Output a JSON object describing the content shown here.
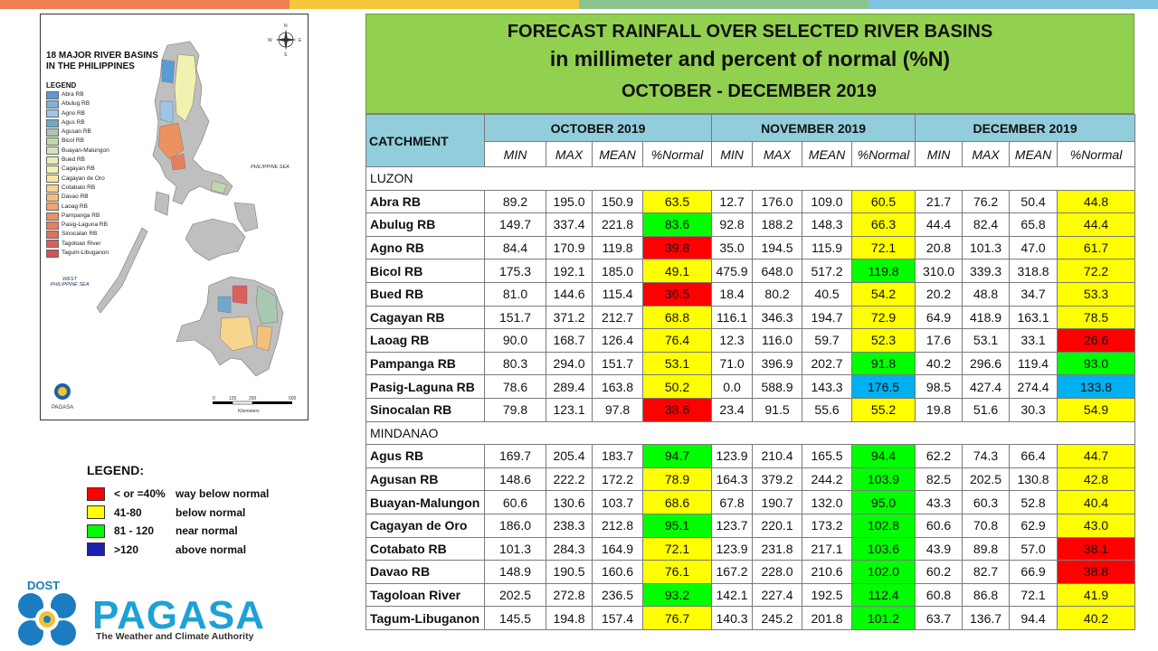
{
  "top_strip_colors": [
    "#f07f4f",
    "#f5c83c",
    "#8bc58b",
    "#7ec3e0"
  ],
  "map": {
    "title_line1": "18 MAJOR RIVER BASINS",
    "title_line2": "IN THE PHILIPPINES",
    "legend_title": "LEGEND",
    "legend": [
      {
        "label": "Abra RB",
        "color": "#5b9bd5"
      },
      {
        "label": "Abulug RB",
        "color": "#7fb2dd"
      },
      {
        "label": "Agno RB",
        "color": "#9ec5e8"
      },
      {
        "label": "Agus RB",
        "color": "#6fa8c9"
      },
      {
        "label": "Agusan RB",
        "color": "#a9c8b0"
      },
      {
        "label": "Bicol RB",
        "color": "#c0d7a8"
      },
      {
        "label": "Buayan-Malungon",
        "color": "#d4e6b5"
      },
      {
        "label": "Bued RB",
        "color": "#e4efb4"
      },
      {
        "label": "Cagayan RB",
        "color": "#f2f2b0"
      },
      {
        "label": "Cagayan de Oro",
        "color": "#f7e9a0"
      },
      {
        "label": "Cotabato RB",
        "color": "#f6d58c"
      },
      {
        "label": "Davao RB",
        "color": "#f4bf7a"
      },
      {
        "label": "Laoag RB",
        "color": "#f1a66c"
      },
      {
        "label": "Pampanga RB",
        "color": "#ec9160"
      },
      {
        "label": "Pasig-Laguna RB",
        "color": "#e87f5c"
      },
      {
        "label": "Sinocalan RB",
        "color": "#e26f5c"
      },
      {
        "label": "Tagoloan River",
        "color": "#db5f5a"
      },
      {
        "label": "Tagum-Libuganon",
        "color": "#d65058"
      }
    ],
    "philippine_sea_label": "PHILIPPINE SEA",
    "west_sea_label": "WEST PHILIPPINE SEA",
    "compass_letters": [
      "N",
      "E",
      "S",
      "W"
    ],
    "scale_ticks": [
      "0",
      "125",
      "250",
      "500"
    ],
    "scale_unit": "Kilometers",
    "footer": "PAGASA"
  },
  "header": {
    "line1": "FORECAST RAINFALL OVER SELECTED RIVER BASINS",
    "line2": "in millimeter  and percent of normal (%N)",
    "line3": "OCTOBER -  DECEMBER 2019"
  },
  "table": {
    "catchment_label": "CATCHMENT",
    "months": [
      "OCTOBER 2019",
      "NOVEMBER 2019",
      "DECEMBER 2019"
    ],
    "subheaders": [
      "MIN",
      "MAX",
      "MEAN",
      "%Normal"
    ],
    "regions": [
      {
        "name": "LUZON",
        "rows": [
          {
            "name": "Abra RB",
            "v": [
              "89.2",
              "195.0",
              "150.9",
              "63.5",
              "12.7",
              "176.0",
              "109.0",
              "60.5",
              "21.7",
              "76.2",
              "50.4",
              "44.8"
            ],
            "c": [
              "yellow",
              "yellow",
              "yellow"
            ]
          },
          {
            "name": "Abulug RB",
            "v": [
              "149.7",
              "337.4",
              "221.8",
              "83.6",
              "92.8",
              "188.2",
              "148.3",
              "66.3",
              "44.4",
              "82.4",
              "65.8",
              "44.4"
            ],
            "c": [
              "green",
              "yellow",
              "yellow"
            ]
          },
          {
            "name": "Agno RB",
            "v": [
              "84.4",
              "170.9",
              "119.8",
              "39.8",
              "35.0",
              "194.5",
              "115.9",
              "72.1",
              "20.8",
              "101.3",
              "47.0",
              "61.7"
            ],
            "c": [
              "red",
              "yellow",
              "yellow"
            ]
          },
          {
            "name": "Bicol RB",
            "v": [
              "175.3",
              "192.1",
              "185.0",
              "49.1",
              "475.9",
              "648.0",
              "517.2",
              "119.8",
              "310.0",
              "339.3",
              "318.8",
              "72.2"
            ],
            "c": [
              "yellow",
              "green",
              "yellow"
            ]
          },
          {
            "name": "Bued RB",
            "v": [
              "81.0",
              "144.6",
              "115.4",
              "36.5",
              "18.4",
              "80.2",
              "40.5",
              "54.2",
              "20.2",
              "48.8",
              "34.7",
              "53.3"
            ],
            "c": [
              "red",
              "yellow",
              "yellow"
            ]
          },
          {
            "name": "Cagayan RB",
            "v": [
              "151.7",
              "371.2",
              "212.7",
              "68.8",
              "116.1",
              "346.3",
              "194.7",
              "72.9",
              "64.9",
              "418.9",
              "163.1",
              "78.5"
            ],
            "c": [
              "yellow",
              "yellow",
              "yellow"
            ]
          },
          {
            "name": "Laoag RB",
            "v": [
              "90.0",
              "168.7",
              "126.4",
              "76.4",
              "12.3",
              "116.0",
              "59.7",
              "52.3",
              "17.6",
              "53.1",
              "33.1",
              "26.6"
            ],
            "c": [
              "yellow",
              "yellow",
              "red"
            ]
          },
          {
            "name": "Pampanga RB",
            "v": [
              "80.3",
              "294.0",
              "151.7",
              "53.1",
              "71.0",
              "396.9",
              "202.7",
              "91.8",
              "40.2",
              "296.6",
              "119.4",
              "93.0"
            ],
            "c": [
              "yellow",
              "green",
              "green"
            ]
          },
          {
            "name": "Pasig-Laguna RB",
            "v": [
              "78.6",
              "289.4",
              "163.8",
              "50.2",
              "0.0",
              "588.9",
              "143.3",
              "176.5",
              "98.5",
              "427.4",
              "274.4",
              "133.8"
            ],
            "c": [
              "yellow",
              "blue",
              "blue"
            ]
          },
          {
            "name": "Sinocalan RB",
            "v": [
              "79.8",
              "123.1",
              "97.8",
              "38.6",
              "23.4",
              "91.5",
              "55.6",
              "55.2",
              "19.8",
              "51.6",
              "30.3",
              "54.9"
            ],
            "c": [
              "red",
              "yellow",
              "yellow"
            ]
          }
        ]
      },
      {
        "name": "MINDANAO",
        "rows": [
          {
            "name": "Agus RB",
            "v": [
              "169.7",
              "205.4",
              "183.7",
              "94.7",
              "123.9",
              "210.4",
              "165.5",
              "94.4",
              "62.2",
              "74.3",
              "66.4",
              "44.7"
            ],
            "c": [
              "green",
              "green",
              "yellow"
            ]
          },
          {
            "name": "Agusan RB",
            "v": [
              "148.6",
              "222.2",
              "172.2",
              "78.9",
              "164.3",
              "379.2",
              "244.2",
              "103.9",
              "82.5",
              "202.5",
              "130.8",
              "42.8"
            ],
            "c": [
              "yellow",
              "green",
              "yellow"
            ]
          },
          {
            "name": "Buayan-Malungon",
            "v": [
              "60.6",
              "130.6",
              "103.7",
              "68.6",
              "67.8",
              "190.7",
              "132.0",
              "95.0",
              "43.3",
              "60.3",
              "52.8",
              "40.4"
            ],
            "c": [
              "yellow",
              "green",
              "yellow"
            ]
          },
          {
            "name": "Cagayan de Oro",
            "v": [
              "186.0",
              "238.3",
              "212.8",
              "95.1",
              "123.7",
              "220.1",
              "173.2",
              "102.8",
              "60.6",
              "70.8",
              "62.9",
              "43.0"
            ],
            "c": [
              "green",
              "green",
              "yellow"
            ]
          },
          {
            "name": "Cotabato RB",
            "v": [
              "101.3",
              "284.3",
              "164.9",
              "72.1",
              "123.9",
              "231.8",
              "217.1",
              "103.6",
              "43.9",
              "89.8",
              "57.0",
              "38.1"
            ],
            "c": [
              "yellow",
              "green",
              "red"
            ]
          },
          {
            "name": "Davao RB",
            "v": [
              "148.9",
              "190.5",
              "160.6",
              "76.1",
              "167.2",
              "228.0",
              "210.6",
              "102.0",
              "60.2",
              "82.7",
              "66.9",
              "38.8"
            ],
            "c": [
              "yellow",
              "green",
              "red"
            ]
          },
          {
            "name": "Tagoloan River",
            "v": [
              "202.5",
              "272.8",
              "236.5",
              "93.2",
              "142.1",
              "227.4",
              "192.5",
              "112.4",
              "60.8",
              "86.8",
              "72.1",
              "41.9"
            ],
            "c": [
              "green",
              "green",
              "yellow"
            ]
          },
          {
            "name": "Tagum-Libuganon",
            "v": [
              "145.5",
              "194.8",
              "157.4",
              "76.7",
              "140.3",
              "245.2",
              "201.8",
              "101.2",
              "63.7",
              "136.7",
              "94.4",
              "40.2"
            ],
            "c": [
              "yellow",
              "green",
              "yellow"
            ]
          }
        ]
      }
    ]
  },
  "legend": {
    "title": "LEGEND:",
    "items": [
      {
        "range": "< or =40%",
        "desc": "way below normal",
        "color": "#ff0000"
      },
      {
        "range": "41-80",
        "desc": "below normal",
        "color": "#ffff00"
      },
      {
        "range": "81 - 120",
        "desc": "near normal",
        "color": "#00ff00"
      },
      {
        "range": ">120",
        "desc": "above normal",
        "color": "#1f1fb0"
      }
    ]
  },
  "logo": {
    "agency": "DOST",
    "name": "PAGASA",
    "tagline": "The Weather and Climate Authority"
  }
}
